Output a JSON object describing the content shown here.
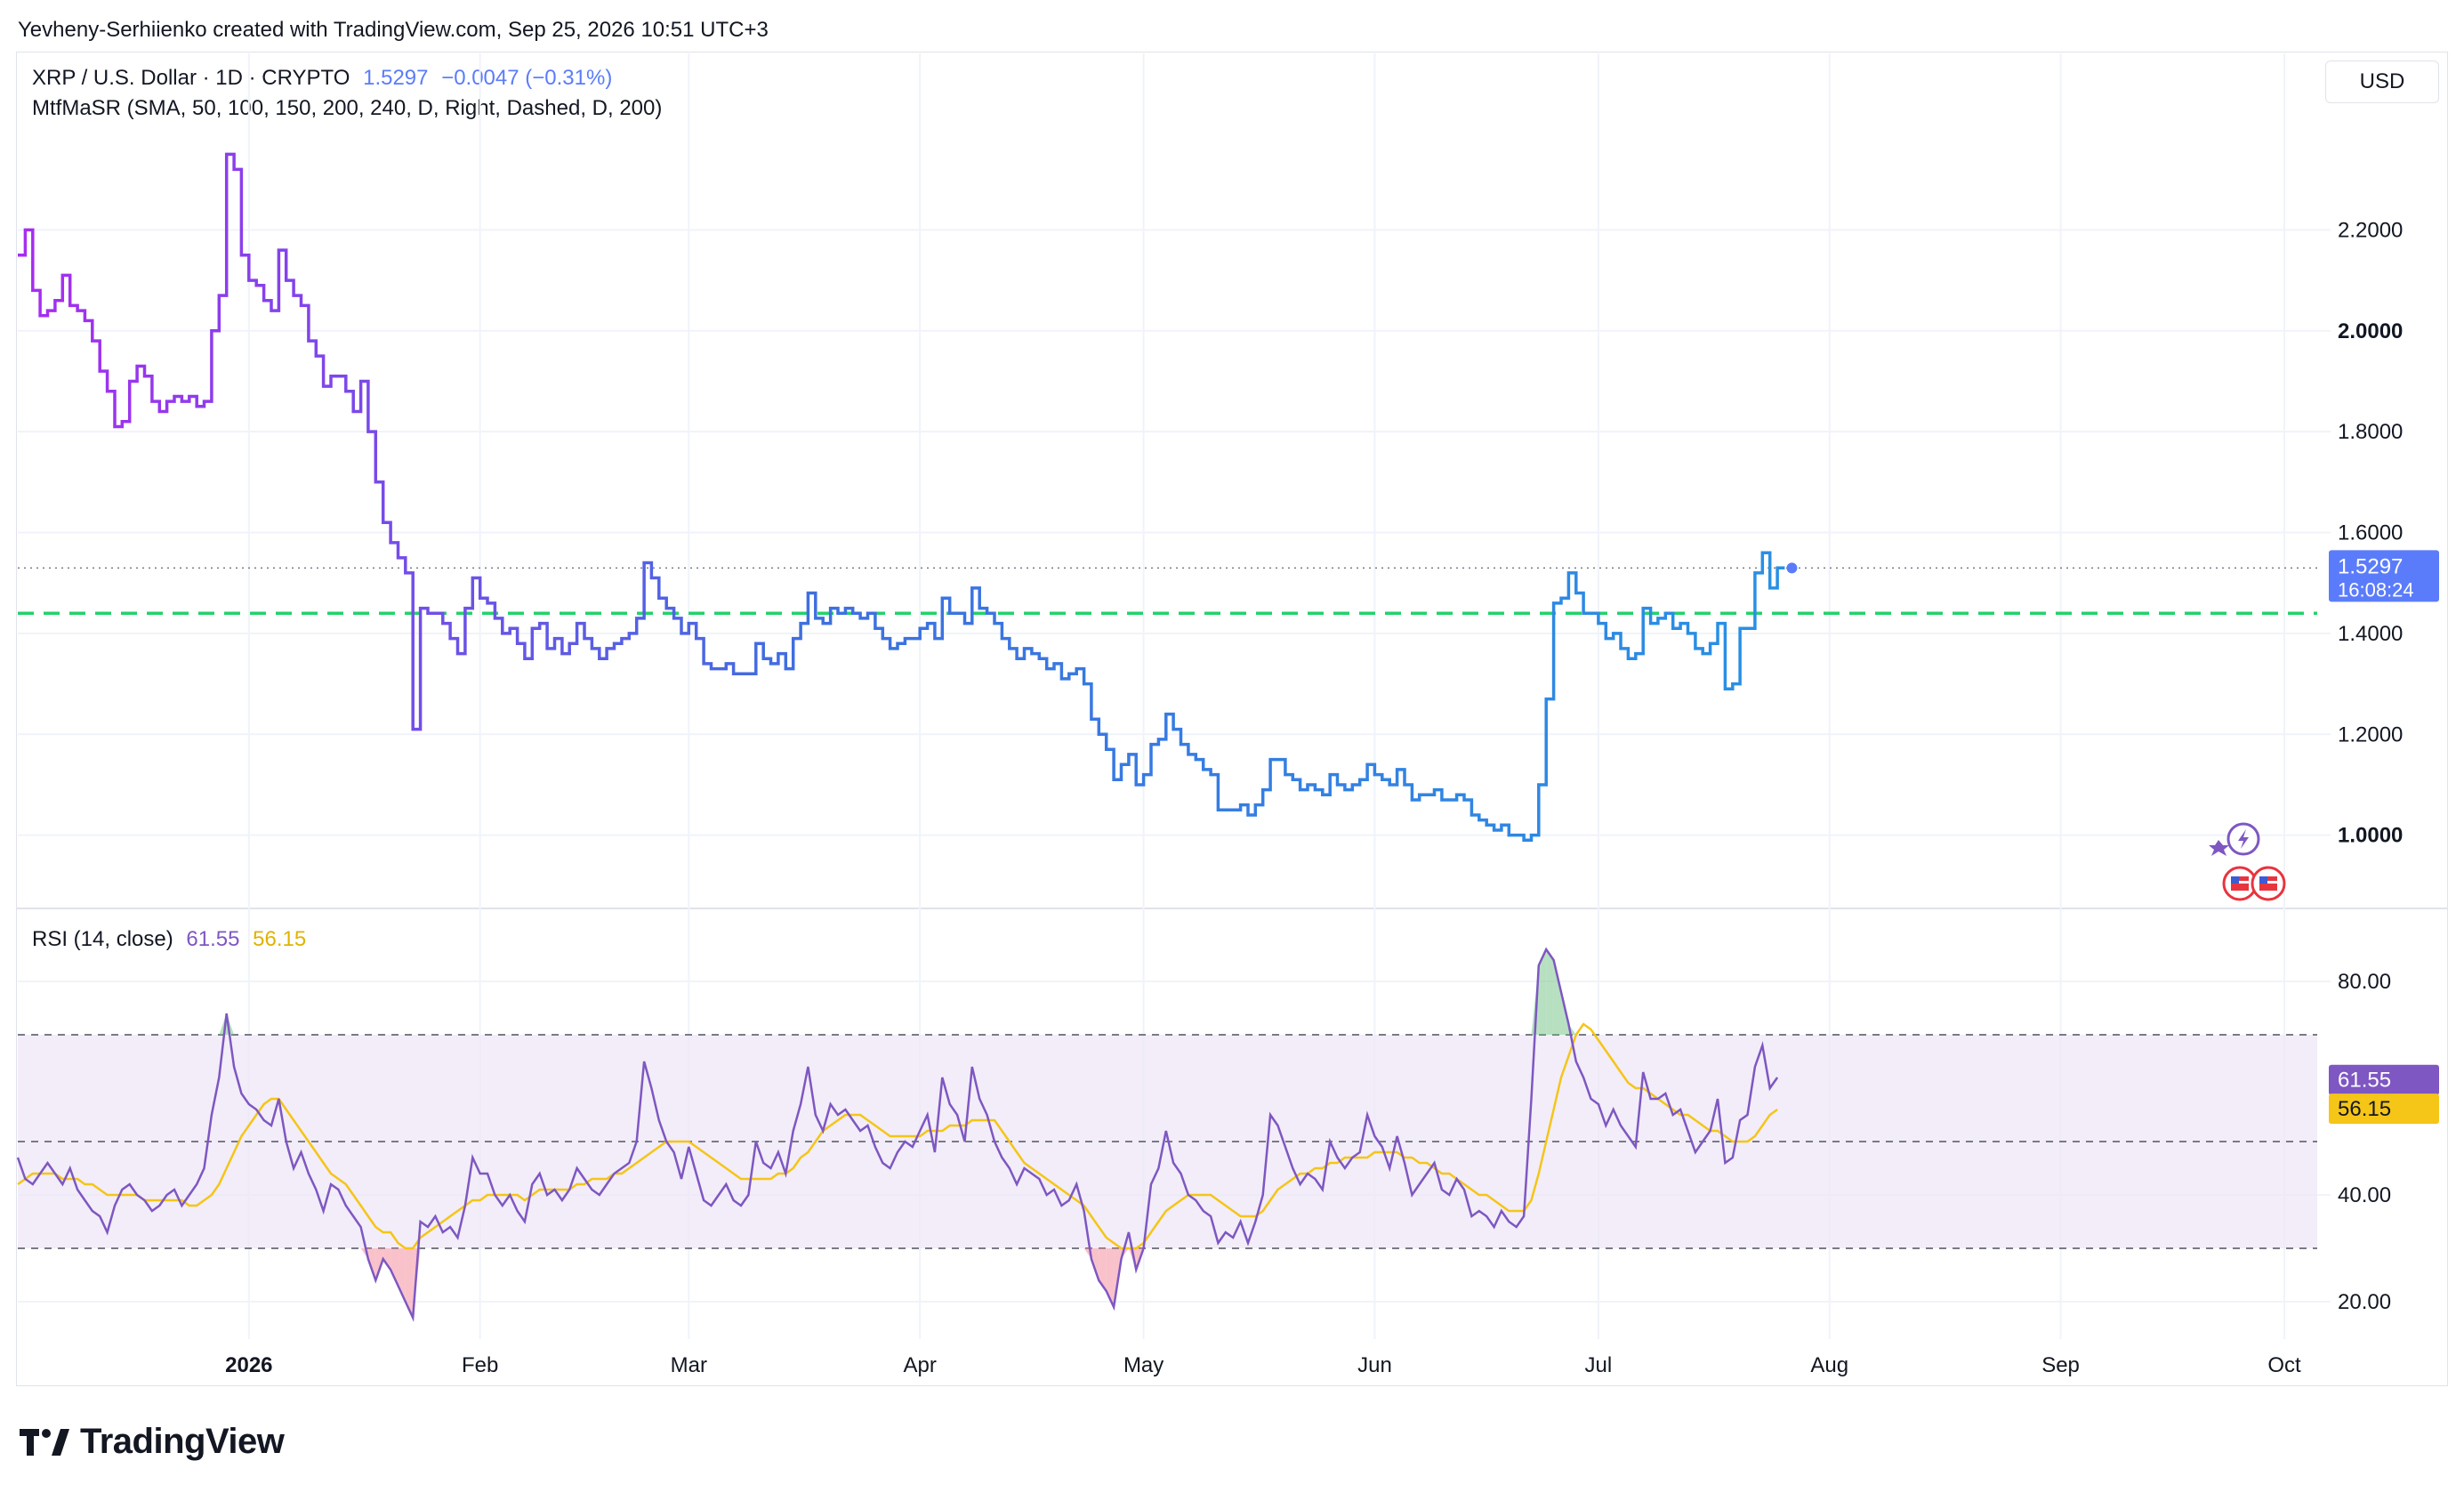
{
  "caption": "Yevheny-Serhiienko created with TradingView.com, Sep 25, 2026 10:51 UTC+3",
  "legend": {
    "symbol": "XRP / U.S. Dollar · 1D · CRYPTO",
    "last": "1.5297",
    "change": "−0.0047 (−0.31%)",
    "indicator": "MtfMaSR (SMA, 50, 100, 150, 200, 240, D, Right, Dashed, D, 200)"
  },
  "currency": "USD",
  "rsi_legend": {
    "label": "RSI (14, close)",
    "rsi": "61.55",
    "ma": "56.15"
  },
  "price_label": {
    "value": "1.5297",
    "countdown": "16:08:24"
  },
  "brand": "TradingView",
  "colors": {
    "price_start": "#a82cf0",
    "price_mid": "#3f6ee0",
    "price_end": "#1ea0e6",
    "sma_line": "#22d36a",
    "rsi_line": "#7e57c2",
    "rsi_ma": "#f5c518",
    "rsi_band": "#ede7f6",
    "current_price_label": "#5b7cfa",
    "ob_fill": "#7cc78c",
    "os_fill": "#f48fa0"
  },
  "chart_data": [
    {
      "type": "line",
      "title": "XRP / U.S. Dollar · 1D · CRYPTO",
      "y_ticks": [
        "2.2000",
        "2.0000",
        "1.8000",
        "1.6000",
        "1.4000",
        "1.2000",
        "1.0000"
      ],
      "ylim": [
        0.86,
        2.55
      ],
      "x_ticks": [
        "2026",
        "Feb",
        "Mar",
        "Apr",
        "May",
        "Jun",
        "Jul",
        "Aug",
        "Sep",
        "Oct"
      ],
      "x_tick_dates": [
        "2026-01-01",
        "2026-02-01",
        "2026-03-01",
        "2026-04-01",
        "2026-05-01",
        "2026-06-01",
        "2026-07-01",
        "2026-08-01",
        "2026-09-01",
        "2026-10-01"
      ],
      "start_date": "2025-12-01",
      "sma_level": 1.44,
      "series": [
        {
          "values": [
            2.15,
            2.2,
            2.08,
            2.03,
            2.04,
            2.06,
            2.11,
            2.05,
            2.04,
            2.02,
            1.98,
            1.92,
            1.88,
            1.81,
            1.82,
            1.9,
            1.93,
            1.91,
            1.86,
            1.84,
            1.86,
            1.87,
            1.86,
            1.87,
            1.85,
            1.86,
            2.0,
            2.07,
            2.35,
            2.32,
            2.15,
            2.1,
            2.09,
            2.06,
            2.04,
            2.16,
            2.1,
            2.07,
            2.05,
            1.98,
            1.95,
            1.89,
            1.91,
            1.91,
            1.88,
            1.84,
            1.9,
            1.8,
            1.7,
            1.62,
            1.58,
            1.55,
            1.52,
            1.21,
            1.45,
            1.44,
            1.44,
            1.42,
            1.39,
            1.36,
            1.45,
            1.51,
            1.47,
            1.46,
            1.43,
            1.4,
            1.41,
            1.38,
            1.35,
            1.41,
            1.42,
            1.37,
            1.39,
            1.36,
            1.38,
            1.42,
            1.39,
            1.37,
            1.35,
            1.37,
            1.38,
            1.39,
            1.4,
            1.43,
            1.54,
            1.51,
            1.47,
            1.45,
            1.43,
            1.4,
            1.42,
            1.39,
            1.34,
            1.33,
            1.33,
            1.34,
            1.32,
            1.32,
            1.32,
            1.38,
            1.35,
            1.34,
            1.36,
            1.33,
            1.39,
            1.42,
            1.48,
            1.43,
            1.42,
            1.45,
            1.44,
            1.45,
            1.44,
            1.43,
            1.44,
            1.41,
            1.39,
            1.37,
            1.38,
            1.39,
            1.39,
            1.41,
            1.42,
            1.39,
            1.47,
            1.44,
            1.44,
            1.42,
            1.49,
            1.45,
            1.44,
            1.42,
            1.39,
            1.37,
            1.35,
            1.37,
            1.36,
            1.35,
            1.33,
            1.34,
            1.31,
            1.32,
            1.33,
            1.3,
            1.23,
            1.2,
            1.17,
            1.11,
            1.14,
            1.16,
            1.1,
            1.12,
            1.18,
            1.19,
            1.24,
            1.21,
            1.18,
            1.16,
            1.15,
            1.13,
            1.12,
            1.05,
            1.05,
            1.05,
            1.06,
            1.04,
            1.06,
            1.09,
            1.15,
            1.15,
            1.12,
            1.11,
            1.09,
            1.1,
            1.09,
            1.08,
            1.12,
            1.1,
            1.09,
            1.1,
            1.11,
            1.14,
            1.12,
            1.11,
            1.1,
            1.13,
            1.1,
            1.07,
            1.08,
            1.08,
            1.09,
            1.07,
            1.07,
            1.08,
            1.07,
            1.04,
            1.03,
            1.02,
            1.01,
            1.02,
            1.0,
            1.0,
            0.99,
            1.0,
            1.1,
            1.27,
            1.46,
            1.47,
            1.52,
            1.48,
            1.44,
            1.44,
            1.42,
            1.39,
            1.4,
            1.37,
            1.35,
            1.36,
            1.45,
            1.42,
            1.43,
            1.44,
            1.41,
            1.42,
            1.4,
            1.37,
            1.36,
            1.38,
            1.42,
            1.29,
            1.3,
            1.41,
            1.41,
            1.52,
            1.56,
            1.49,
            1.53
          ]
        }
      ],
      "last_value": 1.5297
    },
    {
      "type": "line",
      "title": "RSI (14, close)",
      "y_ticks": [
        "80.00",
        "40.00",
        "20.00"
      ],
      "ylim": [
        13,
        93
      ],
      "bands": [
        70,
        50,
        30
      ],
      "start_date": "2025-12-01",
      "series": [
        {
          "name": "RSI",
          "values": [
            47,
            43,
            42,
            44,
            46,
            44,
            42,
            45,
            41,
            39,
            37,
            36,
            33,
            38,
            41,
            42,
            40,
            39,
            37,
            38,
            40,
            41,
            38,
            40,
            42,
            45,
            55,
            62,
            74,
            64,
            59,
            57,
            56,
            54,
            53,
            58,
            50,
            45,
            48,
            44,
            41,
            37,
            42,
            41,
            38,
            36,
            34,
            28,
            24,
            28,
            26,
            23,
            20,
            17,
            35,
            34,
            36,
            33,
            34,
            32,
            38,
            47,
            44,
            44,
            40,
            38,
            40,
            37,
            35,
            42,
            44,
            40,
            41,
            39,
            41,
            45,
            43,
            41,
            40,
            42,
            44,
            45,
            46,
            50,
            65,
            60,
            54,
            50,
            48,
            43,
            49,
            44,
            39,
            38,
            40,
            42,
            39,
            38,
            40,
            50,
            46,
            45,
            48,
            44,
            52,
            57,
            64,
            55,
            52,
            57,
            55,
            56,
            54,
            52,
            53,
            49,
            46,
            45,
            48,
            50,
            49,
            52,
            55,
            48,
            62,
            57,
            55,
            50,
            64,
            58,
            55,
            50,
            47,
            45,
            42,
            45,
            44,
            43,
            40,
            41,
            38,
            39,
            42,
            37,
            28,
            24,
            22,
            19,
            28,
            33,
            26,
            30,
            42,
            45,
            52,
            46,
            44,
            40,
            39,
            37,
            36,
            31,
            33,
            32,
            35,
            31,
            35,
            40,
            55,
            53,
            49,
            45,
            42,
            44,
            43,
            41,
            50,
            47,
            45,
            47,
            48,
            55,
            51,
            49,
            45,
            51,
            46,
            40,
            42,
            44,
            46,
            41,
            40,
            43,
            41,
            36,
            37,
            36,
            34,
            37,
            35,
            34,
            36,
            58,
            83,
            86,
            84,
            78,
            72,
            65,
            62,
            58,
            57,
            53,
            56,
            53,
            51,
            49,
            63,
            58,
            58,
            59,
            55,
            56,
            52,
            48,
            50,
            52,
            58,
            46,
            47,
            54,
            55,
            64,
            68,
            60,
            62
          ]
        },
        {
          "name": "RSI-based MA",
          "values": [
            42,
            43,
            44,
            44,
            44,
            44,
            43,
            43,
            43,
            42,
            42,
            41,
            40,
            40,
            40,
            40,
            40,
            39,
            39,
            39,
            39,
            39,
            39,
            38,
            38,
            39,
            40,
            42,
            45,
            48,
            51,
            53,
            55,
            57,
            58,
            58,
            56,
            54,
            52,
            50,
            48,
            46,
            44,
            43,
            42,
            40,
            38,
            36,
            34,
            33,
            33,
            31,
            30,
            30,
            32,
            33,
            34,
            35,
            36,
            37,
            38,
            39,
            39,
            40,
            40,
            40,
            40,
            40,
            39,
            40,
            41,
            41,
            41,
            41,
            41,
            42,
            42,
            43,
            43,
            43,
            44,
            44,
            45,
            46,
            47,
            48,
            49,
            50,
            50,
            50,
            50,
            49,
            48,
            47,
            46,
            45,
            44,
            43,
            43,
            43,
            43,
            43,
            44,
            44,
            45,
            47,
            48,
            50,
            52,
            53,
            54,
            55,
            55,
            55,
            54,
            53,
            52,
            51,
            51,
            51,
            51,
            51,
            52,
            52,
            52,
            53,
            53,
            53,
            54,
            54,
            54,
            54,
            52,
            50,
            48,
            46,
            45,
            44,
            43,
            42,
            41,
            40,
            39,
            38,
            36,
            34,
            32,
            31,
            30,
            30,
            30,
            31,
            33,
            35,
            37,
            38,
            39,
            40,
            40,
            40,
            40,
            39,
            38,
            37,
            36,
            36,
            36,
            37,
            39,
            41,
            42,
            43,
            44,
            44,
            45,
            45,
            46,
            46,
            47,
            47,
            47,
            47,
            48,
            48,
            48,
            48,
            47,
            47,
            46,
            46,
            45,
            44,
            44,
            43,
            42,
            41,
            40,
            40,
            39,
            38,
            37,
            37,
            37,
            39,
            44,
            50,
            56,
            62,
            66,
            70,
            72,
            71,
            69,
            67,
            65,
            63,
            61,
            60,
            60,
            59,
            58,
            57,
            56,
            55,
            55,
            54,
            53,
            52,
            52,
            51,
            50,
            50,
            50,
            51,
            53,
            55,
            56
          ]
        }
      ]
    }
  ]
}
